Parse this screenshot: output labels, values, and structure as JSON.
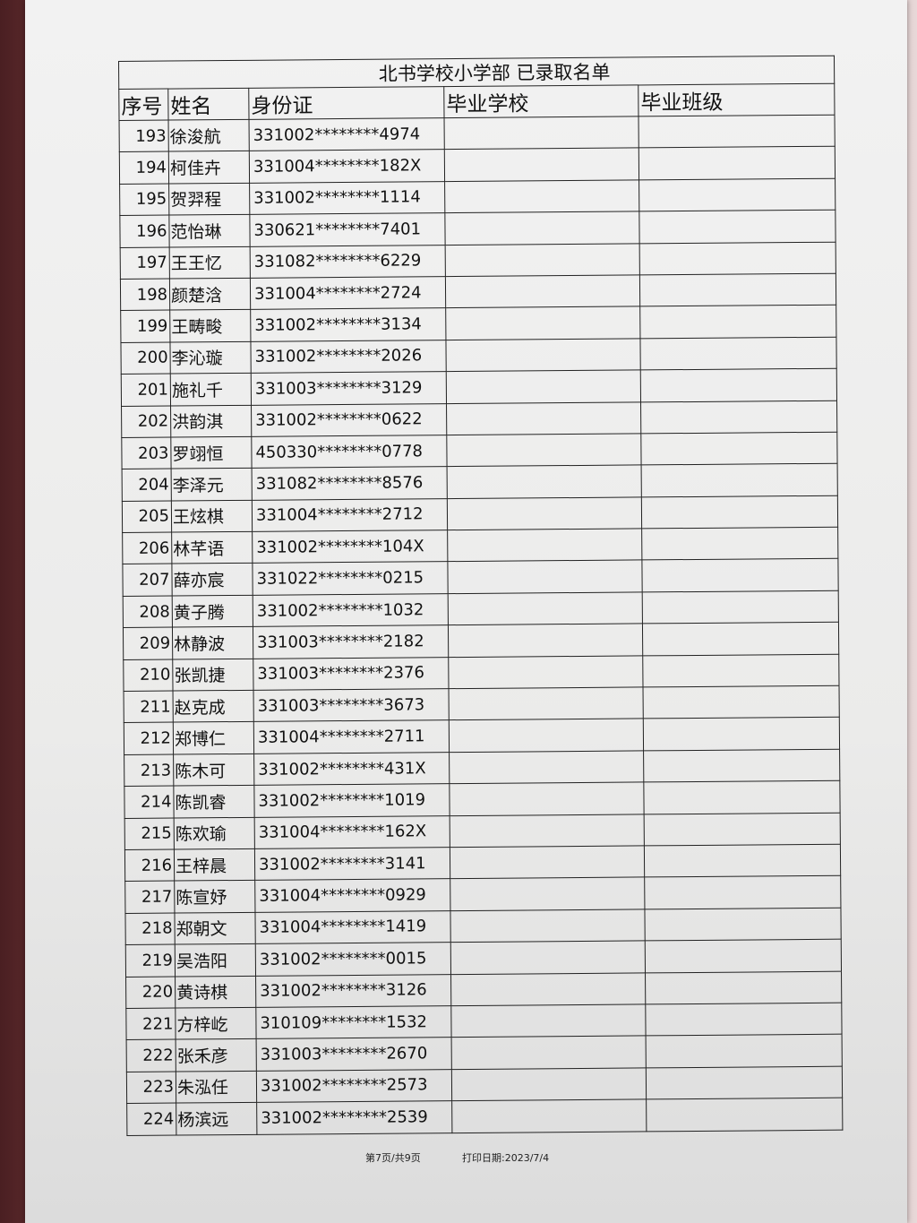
{
  "title": "北书学校小学部  已录取名单",
  "headers": [
    "序号",
    "姓名",
    "身份证",
    "毕业学校",
    "毕业班级"
  ],
  "rows": [
    {
      "seq": "193",
      "name": "徐浚航",
      "id": "331002********4974"
    },
    {
      "seq": "194",
      "name": "柯佳卉",
      "id": "331004********182X"
    },
    {
      "seq": "195",
      "name": "贺羿程",
      "id": "331002********1114"
    },
    {
      "seq": "196",
      "name": "范怡琳",
      "id": "330621********7401"
    },
    {
      "seq": "197",
      "name": "王王忆",
      "id": "331082********6229"
    },
    {
      "seq": "198",
      "name": "颜楚浛",
      "id": "331004********2724"
    },
    {
      "seq": "199",
      "name": "王畴畯",
      "id": "331002********3134"
    },
    {
      "seq": "200",
      "name": "李沁璇",
      "id": "331002********2026"
    },
    {
      "seq": "201",
      "name": "施礼千",
      "id": "331003********3129"
    },
    {
      "seq": "202",
      "name": "洪韵淇",
      "id": "331002********0622"
    },
    {
      "seq": "203",
      "name": "罗翊恒",
      "id": "450330********0778"
    },
    {
      "seq": "204",
      "name": "李泽元",
      "id": "331082********8576"
    },
    {
      "seq": "205",
      "name": "王炫棋",
      "id": "331004********2712"
    },
    {
      "seq": "206",
      "name": "林芊语",
      "id": "331002********104X"
    },
    {
      "seq": "207",
      "name": "薛亦宸",
      "id": "331022********0215"
    },
    {
      "seq": "208",
      "name": "黄子腾",
      "id": "331002********1032"
    },
    {
      "seq": "209",
      "name": "林静波",
      "id": "331003********2182"
    },
    {
      "seq": "210",
      "name": "张凯捷",
      "id": "331003********2376"
    },
    {
      "seq": "211",
      "name": "赵克成",
      "id": "331003********3673"
    },
    {
      "seq": "212",
      "name": "郑博仁",
      "id": "331004********2711"
    },
    {
      "seq": "213",
      "name": "陈木可",
      "id": "331002********431X"
    },
    {
      "seq": "214",
      "name": "陈凯睿",
      "id": "331002********1019"
    },
    {
      "seq": "215",
      "name": "陈欢瑜",
      "id": "331004********162X"
    },
    {
      "seq": "216",
      "name": "王梓晨",
      "id": "331002********3141"
    },
    {
      "seq": "217",
      "name": "陈宣妤",
      "id": "331004********0929"
    },
    {
      "seq": "218",
      "name": "郑朝文",
      "id": "331004********1419"
    },
    {
      "seq": "219",
      "name": "吴浩阳",
      "id": "331002********0015"
    },
    {
      "seq": "220",
      "name": "黄诗棋",
      "id": "331002********3126"
    },
    {
      "seq": "221",
      "name": "方梓屹",
      "id": "310109********1532"
    },
    {
      "seq": "222",
      "name": "张禾彦",
      "id": "331003********2670"
    },
    {
      "seq": "223",
      "name": "朱泓任",
      "id": "331002********2573"
    },
    {
      "seq": "224",
      "name": "杨滨远",
      "id": "331002********2539"
    }
  ],
  "footer": {
    "page": "第7页/共9页",
    "print_date": "打印日期:2023/7/4"
  }
}
